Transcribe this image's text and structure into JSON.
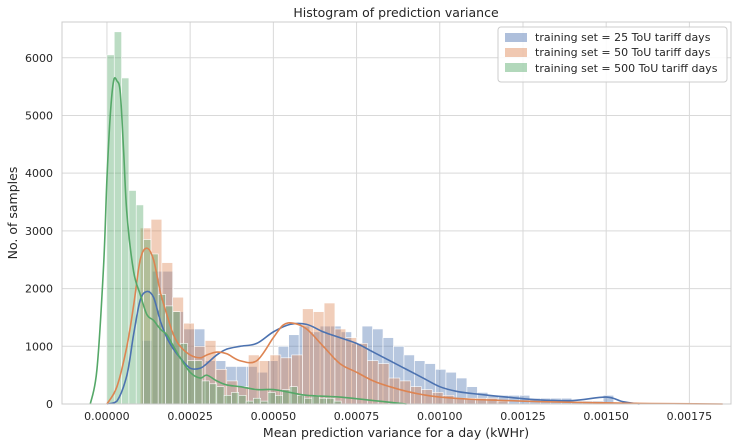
{
  "chart_data": {
    "type": "histogram",
    "title": "Histogram of prediction variance",
    "xlabel": "Mean prediction variance for a day (kWHr)",
    "ylabel": "No. of samples",
    "xlim": [
      -0.000135,
      0.001875
    ],
    "ylim": [
      0,
      6620
    ],
    "xticks": [
      0.0,
      0.00025,
      0.0005,
      0.00075,
      0.001,
      0.00125,
      0.0015,
      0.00175
    ],
    "xtick_labels": [
      "0.00000",
      "0.00025",
      "0.00050",
      "0.00075",
      "0.00100",
      "0.00125",
      "0.00150",
      "0.00175"
    ],
    "yticks": [
      0,
      1000,
      2000,
      3000,
      4000,
      5000,
      6000
    ],
    "ytick_labels": [
      "0",
      "1000",
      "2000",
      "3000",
      "4000",
      "5000",
      "6000"
    ],
    "grid": true,
    "legend_position": "top-right",
    "series": [
      {
        "name": "training set = 25 ToU tariff days",
        "color": "#4c72b0",
        "bin_start": 0.000105,
        "bin_width": 3.15e-05,
        "counts": [
          1100,
          2300,
          2300,
          1600,
          1300,
          1300,
          750,
          750,
          650,
          650,
          650,
          550,
          750,
          1000,
          1200,
          1350,
          1250,
          1350,
          1350,
          1250,
          1050,
          1350,
          1300,
          1150,
          1000,
          850,
          750,
          700,
          600,
          550,
          450,
          300,
          200,
          150,
          150,
          150,
          150,
          100,
          100,
          100,
          100,
          50,
          50,
          50,
          150
        ],
        "kde_x": [
          0.0,
          3e-05,
          6e-05,
          8e-05,
          0.0001,
          0.00012,
          0.00014,
          0.00016,
          0.00018,
          0.0002,
          0.00022,
          0.00025,
          0.00028,
          0.0003,
          0.00033,
          0.00036,
          0.0004,
          0.00045,
          0.0005,
          0.00055,
          0.0006,
          0.00065,
          0.0007,
          0.00075,
          0.0008,
          0.00085,
          0.0009,
          0.00095,
          0.001,
          0.00105,
          0.0011,
          0.0012,
          0.0013,
          0.0014,
          0.0015,
          0.00155,
          0.0016
        ],
        "kde_y": [
          0,
          50,
          500,
          1200,
          1800,
          1950,
          1850,
          1450,
          1150,
          950,
          800,
          620,
          620,
          700,
          850,
          950,
          1000,
          1050,
          1250,
          1380,
          1380,
          1250,
          1150,
          1050,
          900,
          750,
          600,
          450,
          300,
          220,
          180,
          120,
          70,
          60,
          120,
          40,
          0
        ]
      },
      {
        "name": "training set = 50 ToU tariff days",
        "color": "#dd8452",
        "bin_start": 0.0001,
        "bin_width": 3.25e-05,
        "counts": [
          3050,
          3200,
          2450,
          1850,
          1400,
          1000,
          1100,
          600,
          400,
          300,
          850,
          750,
          850,
          800,
          850,
          1650,
          1600,
          1750,
          1300,
          1150,
          1050,
          750,
          700,
          450,
          400,
          300,
          250,
          200,
          150,
          100,
          100,
          100,
          100,
          50
        ],
        "kde_x": [
          0.0,
          3e-05,
          6e-05,
          8e-05,
          0.0001,
          0.00012,
          0.00014,
          0.00016,
          0.00018,
          0.0002,
          0.00022,
          0.00025,
          0.00028,
          0.0003,
          0.00033,
          0.00036,
          0.0004,
          0.00045,
          0.0005,
          0.00053,
          0.00056,
          0.0006,
          0.00065,
          0.0007,
          0.00075,
          0.0008,
          0.00085,
          0.0009,
          0.00095,
          0.001,
          0.0011,
          0.0012,
          0.0013,
          0.0014,
          0.0015,
          0.0016,
          0.0017,
          0.00185
        ],
        "kde_y": [
          0,
          300,
          1000,
          1700,
          2500,
          2700,
          2500,
          1950,
          1550,
          1200,
          1000,
          850,
          800,
          850,
          900,
          870,
          750,
          750,
          1150,
          1370,
          1400,
          1300,
          1000,
          700,
          550,
          400,
          300,
          220,
          160,
          120,
          80,
          60,
          40,
          30,
          20,
          10,
          5,
          0
        ]
      },
      {
        "name": "training set = 500 ToU tariff days",
        "color": "#55a868",
        "bin_start": 0.0,
        "bin_width": 2.2e-05,
        "counts": [
          6050,
          6450,
          5650,
          3700,
          3450,
          2850,
          2600,
          1900,
          1700,
          1600,
          1050,
          750,
          750,
          400,
          350,
          300,
          150,
          200,
          150,
          50,
          100,
          50,
          200,
          150,
          250,
          300,
          150,
          100,
          150,
          100,
          100,
          50
        ],
        "kde_x": [
          -5e-05,
          -3e-05,
          -1e-05,
          0.0,
          1e-05,
          2e-05,
          3e-05,
          4e-05,
          5e-05,
          6e-05,
          8e-05,
          0.0001,
          0.00012,
          0.00014,
          0.00016,
          0.00018,
          0.0002,
          0.00022,
          0.00025,
          0.00028,
          0.0003,
          0.00033,
          0.00036,
          0.0004,
          0.00045,
          0.0005,
          0.00055,
          0.0006,
          0.0007,
          0.0008,
          0.0009
        ],
        "kde_y": [
          0,
          600,
          2400,
          3900,
          5000,
          5600,
          5600,
          5400,
          4400,
          3300,
          2300,
          1900,
          1550,
          1450,
          1300,
          1200,
          1000,
          800,
          550,
          450,
          500,
          400,
          330,
          300,
          250,
          250,
          200,
          150,
          120,
          60,
          0
        ]
      }
    ]
  }
}
